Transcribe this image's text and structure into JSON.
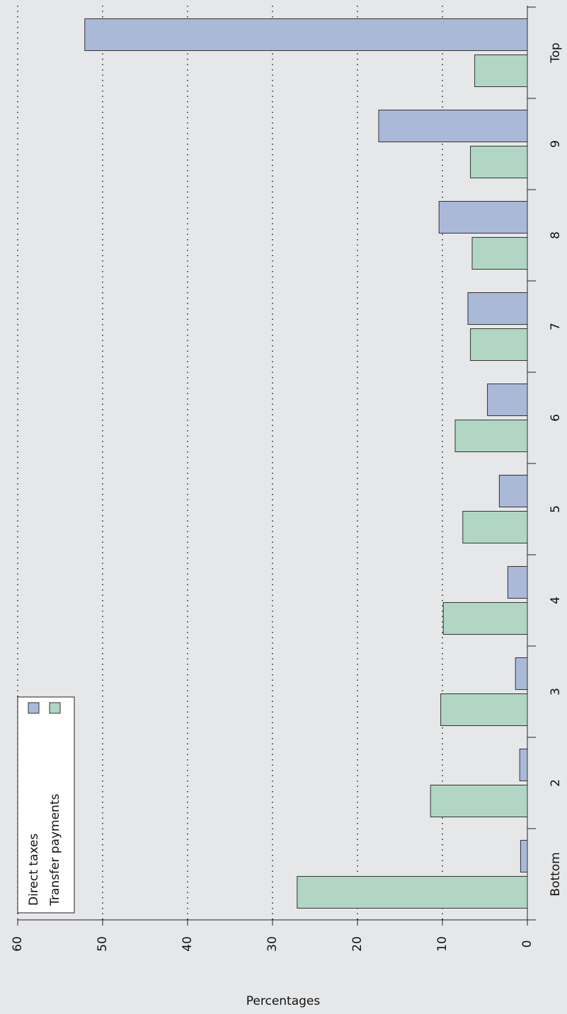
{
  "chart_data": {
    "type": "bar",
    "orientation": "rotated",
    "x_label": "Percentages",
    "categories": [
      "Bottom",
      "2",
      "3",
      "4",
      "5",
      "6",
      "7",
      "8",
      "9",
      "Top"
    ],
    "series": [
      {
        "name": "Direct taxes",
        "color": "#aab9d8",
        "values": [
          0.8,
          0.9,
          1.4,
          2.3,
          3.3,
          4.7,
          7.0,
          10.4,
          17.5,
          52.1
        ]
      },
      {
        "name": "Transfer payments",
        "color": "#b1d6c4",
        "values": [
          27.1,
          11.4,
          10.2,
          9.9,
          7.6,
          8.5,
          6.7,
          6.5,
          6.7,
          6.2
        ]
      }
    ],
    "ylim": [
      0,
      60
    ],
    "yticks": [
      0,
      10,
      20,
      30,
      40,
      50,
      60
    ],
    "grid": true
  }
}
